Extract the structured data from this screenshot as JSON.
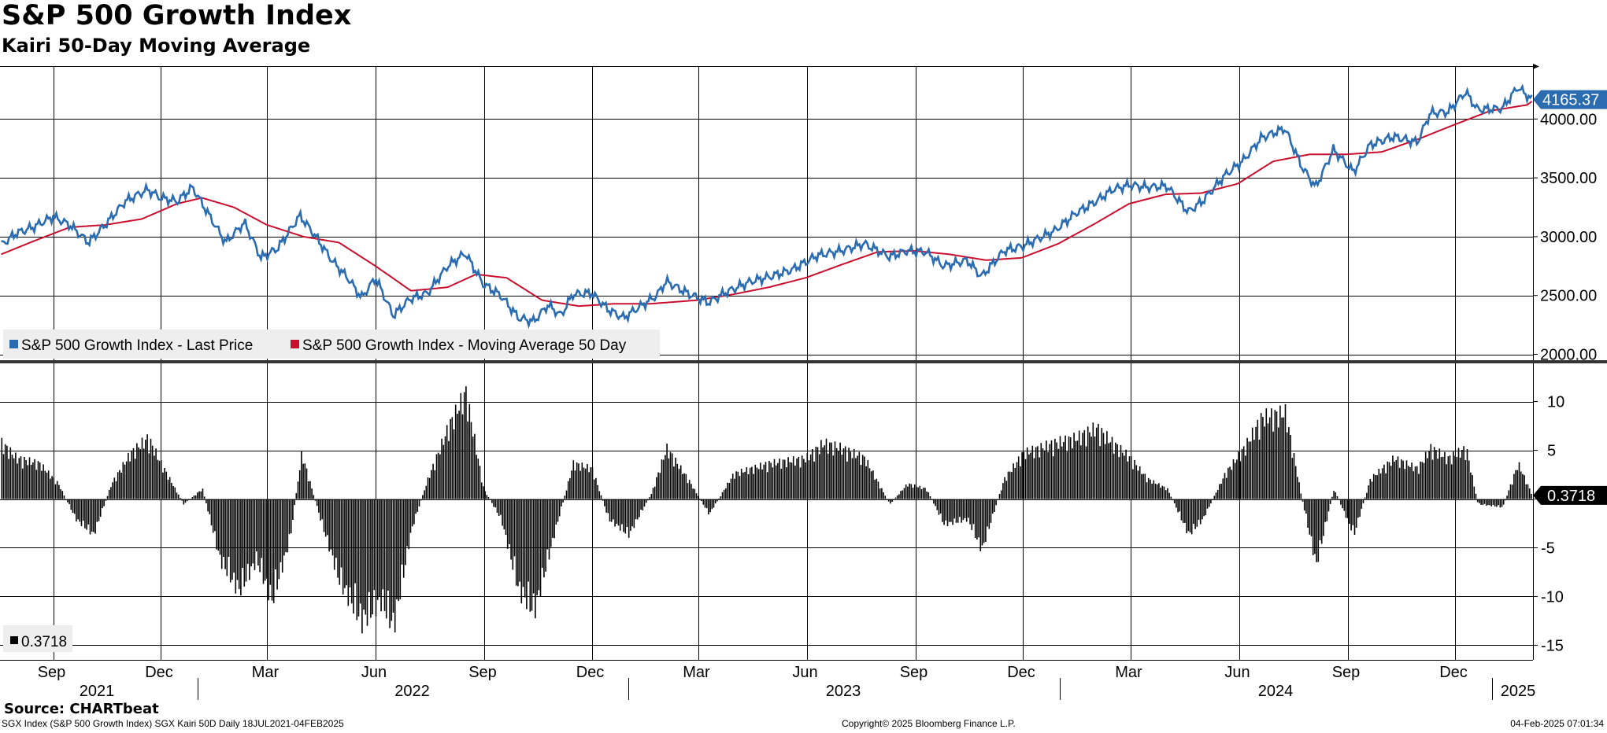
{
  "title": "S&P 500 Growth Index",
  "subtitle": "Kairi 50-Day Moving Average",
  "source": "Source: CHARTbeat",
  "footer": {
    "left": "SGX Index (S&P 500 Growth Index) SGX Kairi 50D  Daily 18JUL2021-04FEB2025",
    "center": "Copyright© 2025 Bloomberg Finance L.P.",
    "right": "04-Feb-2025 07:01:34"
  },
  "colors": {
    "price": "#2b6cb0",
    "ma": "#c8102e",
    "kairi": "#000000",
    "grid": "#000000",
    "price_label_bg": "#2b6cb0"
  },
  "chart_data": [
    {
      "type": "line",
      "title": "S&P 500 Growth Index",
      "ylim": [
        1950,
        4450
      ],
      "yticks": [
        "2000.00",
        "2500.00",
        "3000.00",
        "3500.00",
        "4000.00"
      ],
      "x_month_ticks": [
        "Sep",
        "Dec",
        "Mar",
        "Jun",
        "Sep",
        "Dec",
        "Mar",
        "Jun",
        "Sep",
        "Dec",
        "Mar",
        "Jun",
        "Sep",
        "Dec"
      ],
      "x_year_labels": [
        "2021",
        "2022",
        "2023",
        "2024",
        "2025"
      ],
      "last_value_label": "4165.37",
      "legend": [
        "S&P 500 Growth Index - Last Price",
        "S&P 500 Growth Index - Moving Average 50 Day"
      ],
      "series": [
        {
          "name": "S&P 500 Growth Index - Last Price",
          "points": [
            [
              "2021-07-19",
              2930
            ],
            [
              "2021-08-01",
              3030
            ],
            [
              "2021-08-15",
              3080
            ],
            [
              "2021-09-01",
              3170
            ],
            [
              "2021-09-15",
              3100
            ],
            [
              "2021-10-01",
              2950
            ],
            [
              "2021-10-15",
              3100
            ],
            [
              "2021-11-01",
              3300
            ],
            [
              "2021-11-20",
              3400
            ],
            [
              "2021-12-01",
              3330
            ],
            [
              "2021-12-15",
              3300
            ],
            [
              "2021-12-28",
              3420
            ],
            [
              "2022-01-10",
              3200
            ],
            [
              "2022-01-25",
              2950
            ],
            [
              "2022-02-10",
              3120
            ],
            [
              "2022-02-24",
              2820
            ],
            [
              "2022-03-10",
              2900
            ],
            [
              "2022-03-29",
              3180
            ],
            [
              "2022-04-10",
              3020
            ],
            [
              "2022-04-25",
              2800
            ],
            [
              "2022-05-10",
              2630
            ],
            [
              "2022-05-20",
              2480
            ],
            [
              "2022-06-01",
              2650
            ],
            [
              "2022-06-16",
              2330
            ],
            [
              "2022-06-30",
              2470
            ],
            [
              "2022-07-15",
              2520
            ],
            [
              "2022-08-01",
              2750
            ],
            [
              "2022-08-16",
              2860
            ],
            [
              "2022-08-31",
              2600
            ],
            [
              "2022-09-15",
              2500
            ],
            [
              "2022-09-30",
              2310
            ],
            [
              "2022-10-13",
              2280
            ],
            [
              "2022-10-25",
              2420
            ],
            [
              "2022-11-05",
              2330
            ],
            [
              "2022-11-15",
              2510
            ],
            [
              "2022-12-01",
              2520
            ],
            [
              "2022-12-15",
              2380
            ],
            [
              "2022-12-28",
              2310
            ],
            [
              "2023-01-10",
              2400
            ],
            [
              "2023-01-25",
              2500
            ],
            [
              "2023-02-02",
              2620
            ],
            [
              "2023-02-20",
              2520
            ],
            [
              "2023-03-10",
              2440
            ],
            [
              "2023-03-25",
              2530
            ],
            [
              "2023-04-15",
              2620
            ],
            [
              "2023-05-01",
              2660
            ],
            [
              "2023-05-20",
              2720
            ],
            [
              "2023-06-10",
              2840
            ],
            [
              "2023-06-30",
              2880
            ],
            [
              "2023-07-20",
              2940
            ],
            [
              "2023-08-10",
              2830
            ],
            [
              "2023-08-25",
              2880
            ],
            [
              "2023-09-10",
              2870
            ],
            [
              "2023-09-25",
              2750
            ],
            [
              "2023-10-15",
              2800
            ],
            [
              "2023-10-27",
              2660
            ],
            [
              "2023-11-15",
              2880
            ],
            [
              "2023-12-01",
              2920
            ],
            [
              "2023-12-28",
              3050
            ],
            [
              "2024-01-15",
              3200
            ],
            [
              "2024-02-01",
              3300
            ],
            [
              "2024-02-15",
              3400
            ],
            [
              "2024-03-01",
              3440
            ],
            [
              "2024-03-15",
              3420
            ],
            [
              "2024-04-01",
              3430
            ],
            [
              "2024-04-19",
              3210
            ],
            [
              "2024-05-01",
              3300
            ],
            [
              "2024-05-20",
              3520
            ],
            [
              "2024-06-05",
              3650
            ],
            [
              "2024-06-20",
              3840
            ],
            [
              "2024-07-10",
              3920
            ],
            [
              "2024-07-24",
              3600
            ],
            [
              "2024-08-05",
              3420
            ],
            [
              "2024-08-20",
              3740
            ],
            [
              "2024-09-06",
              3550
            ],
            [
              "2024-09-20",
              3780
            ],
            [
              "2024-10-10",
              3850
            ],
            [
              "2024-10-30",
              3800
            ],
            [
              "2024-11-10",
              4050
            ],
            [
              "2024-11-25",
              4060
            ],
            [
              "2024-12-10",
              4230
            ],
            [
              "2024-12-20",
              4080
            ],
            [
              "2025-01-10",
              4090
            ],
            [
              "2025-01-23",
              4270
            ],
            [
              "2025-02-04",
              4165
            ]
          ]
        },
        {
          "name": "S&P 500 Growth Index - Moving Average 50 Day",
          "points": [
            [
              "2021-07-19",
              2850
            ],
            [
              "2021-08-15",
              2960
            ],
            [
              "2021-09-15",
              3080
            ],
            [
              "2021-10-15",
              3100
            ],
            [
              "2021-11-15",
              3150
            ],
            [
              "2021-12-15",
              3280
            ],
            [
              "2022-01-05",
              3330
            ],
            [
              "2022-02-01",
              3250
            ],
            [
              "2022-03-01",
              3100
            ],
            [
              "2022-04-01",
              3000
            ],
            [
              "2022-05-01",
              2950
            ],
            [
              "2022-06-01",
              2750
            ],
            [
              "2022-07-01",
              2540
            ],
            [
              "2022-08-01",
              2570
            ],
            [
              "2022-08-25",
              2680
            ],
            [
              "2022-09-20",
              2650
            ],
            [
              "2022-10-20",
              2460
            ],
            [
              "2022-11-20",
              2410
            ],
            [
              "2022-12-20",
              2430
            ],
            [
              "2023-01-20",
              2430
            ],
            [
              "2023-02-28",
              2460
            ],
            [
              "2023-03-31",
              2510
            ],
            [
              "2023-04-30",
              2570
            ],
            [
              "2023-05-31",
              2650
            ],
            [
              "2023-06-30",
              2760
            ],
            [
              "2023-07-31",
              2870
            ],
            [
              "2023-08-31",
              2880
            ],
            [
              "2023-09-30",
              2850
            ],
            [
              "2023-10-31",
              2800
            ],
            [
              "2023-11-30",
              2820
            ],
            [
              "2023-12-31",
              2940
            ],
            [
              "2024-01-31",
              3110
            ],
            [
              "2024-02-29",
              3280
            ],
            [
              "2024-03-31",
              3360
            ],
            [
              "2024-04-30",
              3370
            ],
            [
              "2024-05-31",
              3450
            ],
            [
              "2024-06-30",
              3640
            ],
            [
              "2024-07-31",
              3700
            ],
            [
              "2024-08-31",
              3700
            ],
            [
              "2024-09-30",
              3720
            ],
            [
              "2024-10-31",
              3830
            ],
            [
              "2024-11-30",
              3950
            ],
            [
              "2024-12-31",
              4070
            ],
            [
              "2025-01-31",
              4120
            ],
            [
              "2025-02-04",
              4150
            ]
          ]
        }
      ]
    },
    {
      "type": "bar",
      "title": "SGX Kairi 50D",
      "ylim": [
        -16.5,
        14
      ],
      "yticks": [
        "-15",
        "-10",
        "-5",
        "0",
        "5",
        "10"
      ],
      "last_value_label": "0.3718",
      "legend": [
        "0.3718"
      ],
      "series": [
        {
          "name": "Kairi 50D",
          "points": [
            [
              "2021-07-19",
              5.5
            ],
            [
              "2021-08-01",
              4
            ],
            [
              "2021-08-20",
              3.5
            ],
            [
              "2021-09-05",
              1.5
            ],
            [
              "2021-09-20",
              -2
            ],
            [
              "2021-10-05",
              -3.5
            ],
            [
              "2021-10-20",
              1.5
            ],
            [
              "2021-11-05",
              4.5
            ],
            [
              "2021-11-20",
              6
            ],
            [
              "2021-12-01",
              3.5
            ],
            [
              "2021-12-20",
              -0.5
            ],
            [
              "2022-01-05",
              1
            ],
            [
              "2022-01-20",
              -6
            ],
            [
              "2022-02-05",
              -9
            ],
            [
              "2022-02-20",
              -6
            ],
            [
              "2022-03-05",
              -10
            ],
            [
              "2022-03-20",
              -4
            ],
            [
              "2022-03-30",
              4.5
            ],
            [
              "2022-04-15",
              -2
            ],
            [
              "2022-05-01",
              -8
            ],
            [
              "2022-05-20",
              -12
            ],
            [
              "2022-06-05",
              -10
            ],
            [
              "2022-06-16",
              -12.5
            ],
            [
              "2022-07-01",
              -3
            ],
            [
              "2022-07-15",
              2
            ],
            [
              "2022-08-01",
              7
            ],
            [
              "2022-08-16",
              10.5
            ],
            [
              "2022-08-31",
              1
            ],
            [
              "2022-09-15",
              -2
            ],
            [
              "2022-09-30",
              -9
            ],
            [
              "2022-10-13",
              -11
            ],
            [
              "2022-10-31",
              -3
            ],
            [
              "2022-11-15",
              3.5
            ],
            [
              "2022-12-01",
              3
            ],
            [
              "2022-12-15",
              -2
            ],
            [
              "2023-01-01",
              -3.5
            ],
            [
              "2023-01-20",
              0.5
            ],
            [
              "2023-02-02",
              5
            ],
            [
              "2023-02-20",
              2
            ],
            [
              "2023-03-10",
              -1.5
            ],
            [
              "2023-03-31",
              2.5
            ],
            [
              "2023-04-30",
              3.5
            ],
            [
              "2023-05-31",
              4
            ],
            [
              "2023-06-15",
              5.5
            ],
            [
              "2023-06-30",
              5
            ],
            [
              "2023-07-20",
              4
            ],
            [
              "2023-08-10",
              -0.5
            ],
            [
              "2023-08-25",
              1.5
            ],
            [
              "2023-09-10",
              1
            ],
            [
              "2023-09-25",
              -2.5
            ],
            [
              "2023-10-15",
              -2
            ],
            [
              "2023-10-27",
              -5
            ],
            [
              "2023-11-15",
              2
            ],
            [
              "2023-12-01",
              4.5
            ],
            [
              "2023-12-28",
              5.5
            ],
            [
              "2024-01-15",
              6
            ],
            [
              "2024-02-01",
              7
            ],
            [
              "2024-02-15",
              5.5
            ],
            [
              "2024-03-01",
              4
            ],
            [
              "2024-03-15",
              2
            ],
            [
              "2024-04-01",
              1
            ],
            [
              "2024-04-19",
              -3.5
            ],
            [
              "2024-05-01",
              -2
            ],
            [
              "2024-05-20",
              2.5
            ],
            [
              "2024-06-05",
              5
            ],
            [
              "2024-06-20",
              8
            ],
            [
              "2024-07-10",
              8.5
            ],
            [
              "2024-07-24",
              0
            ],
            [
              "2024-08-05",
              -6.5
            ],
            [
              "2024-08-20",
              1
            ],
            [
              "2024-09-06",
              -3.5
            ],
            [
              "2024-09-20",
              2
            ],
            [
              "2024-10-10",
              4
            ],
            [
              "2024-10-30",
              3
            ],
            [
              "2024-11-10",
              5
            ],
            [
              "2024-11-25",
              4
            ],
            [
              "2024-12-10",
              5
            ],
            [
              "2024-12-20",
              -0.5
            ],
            [
              "2025-01-10",
              -0.8
            ],
            [
              "2025-01-23",
              3.5
            ],
            [
              "2025-02-04",
              0.3718
            ]
          ]
        }
      ]
    }
  ]
}
